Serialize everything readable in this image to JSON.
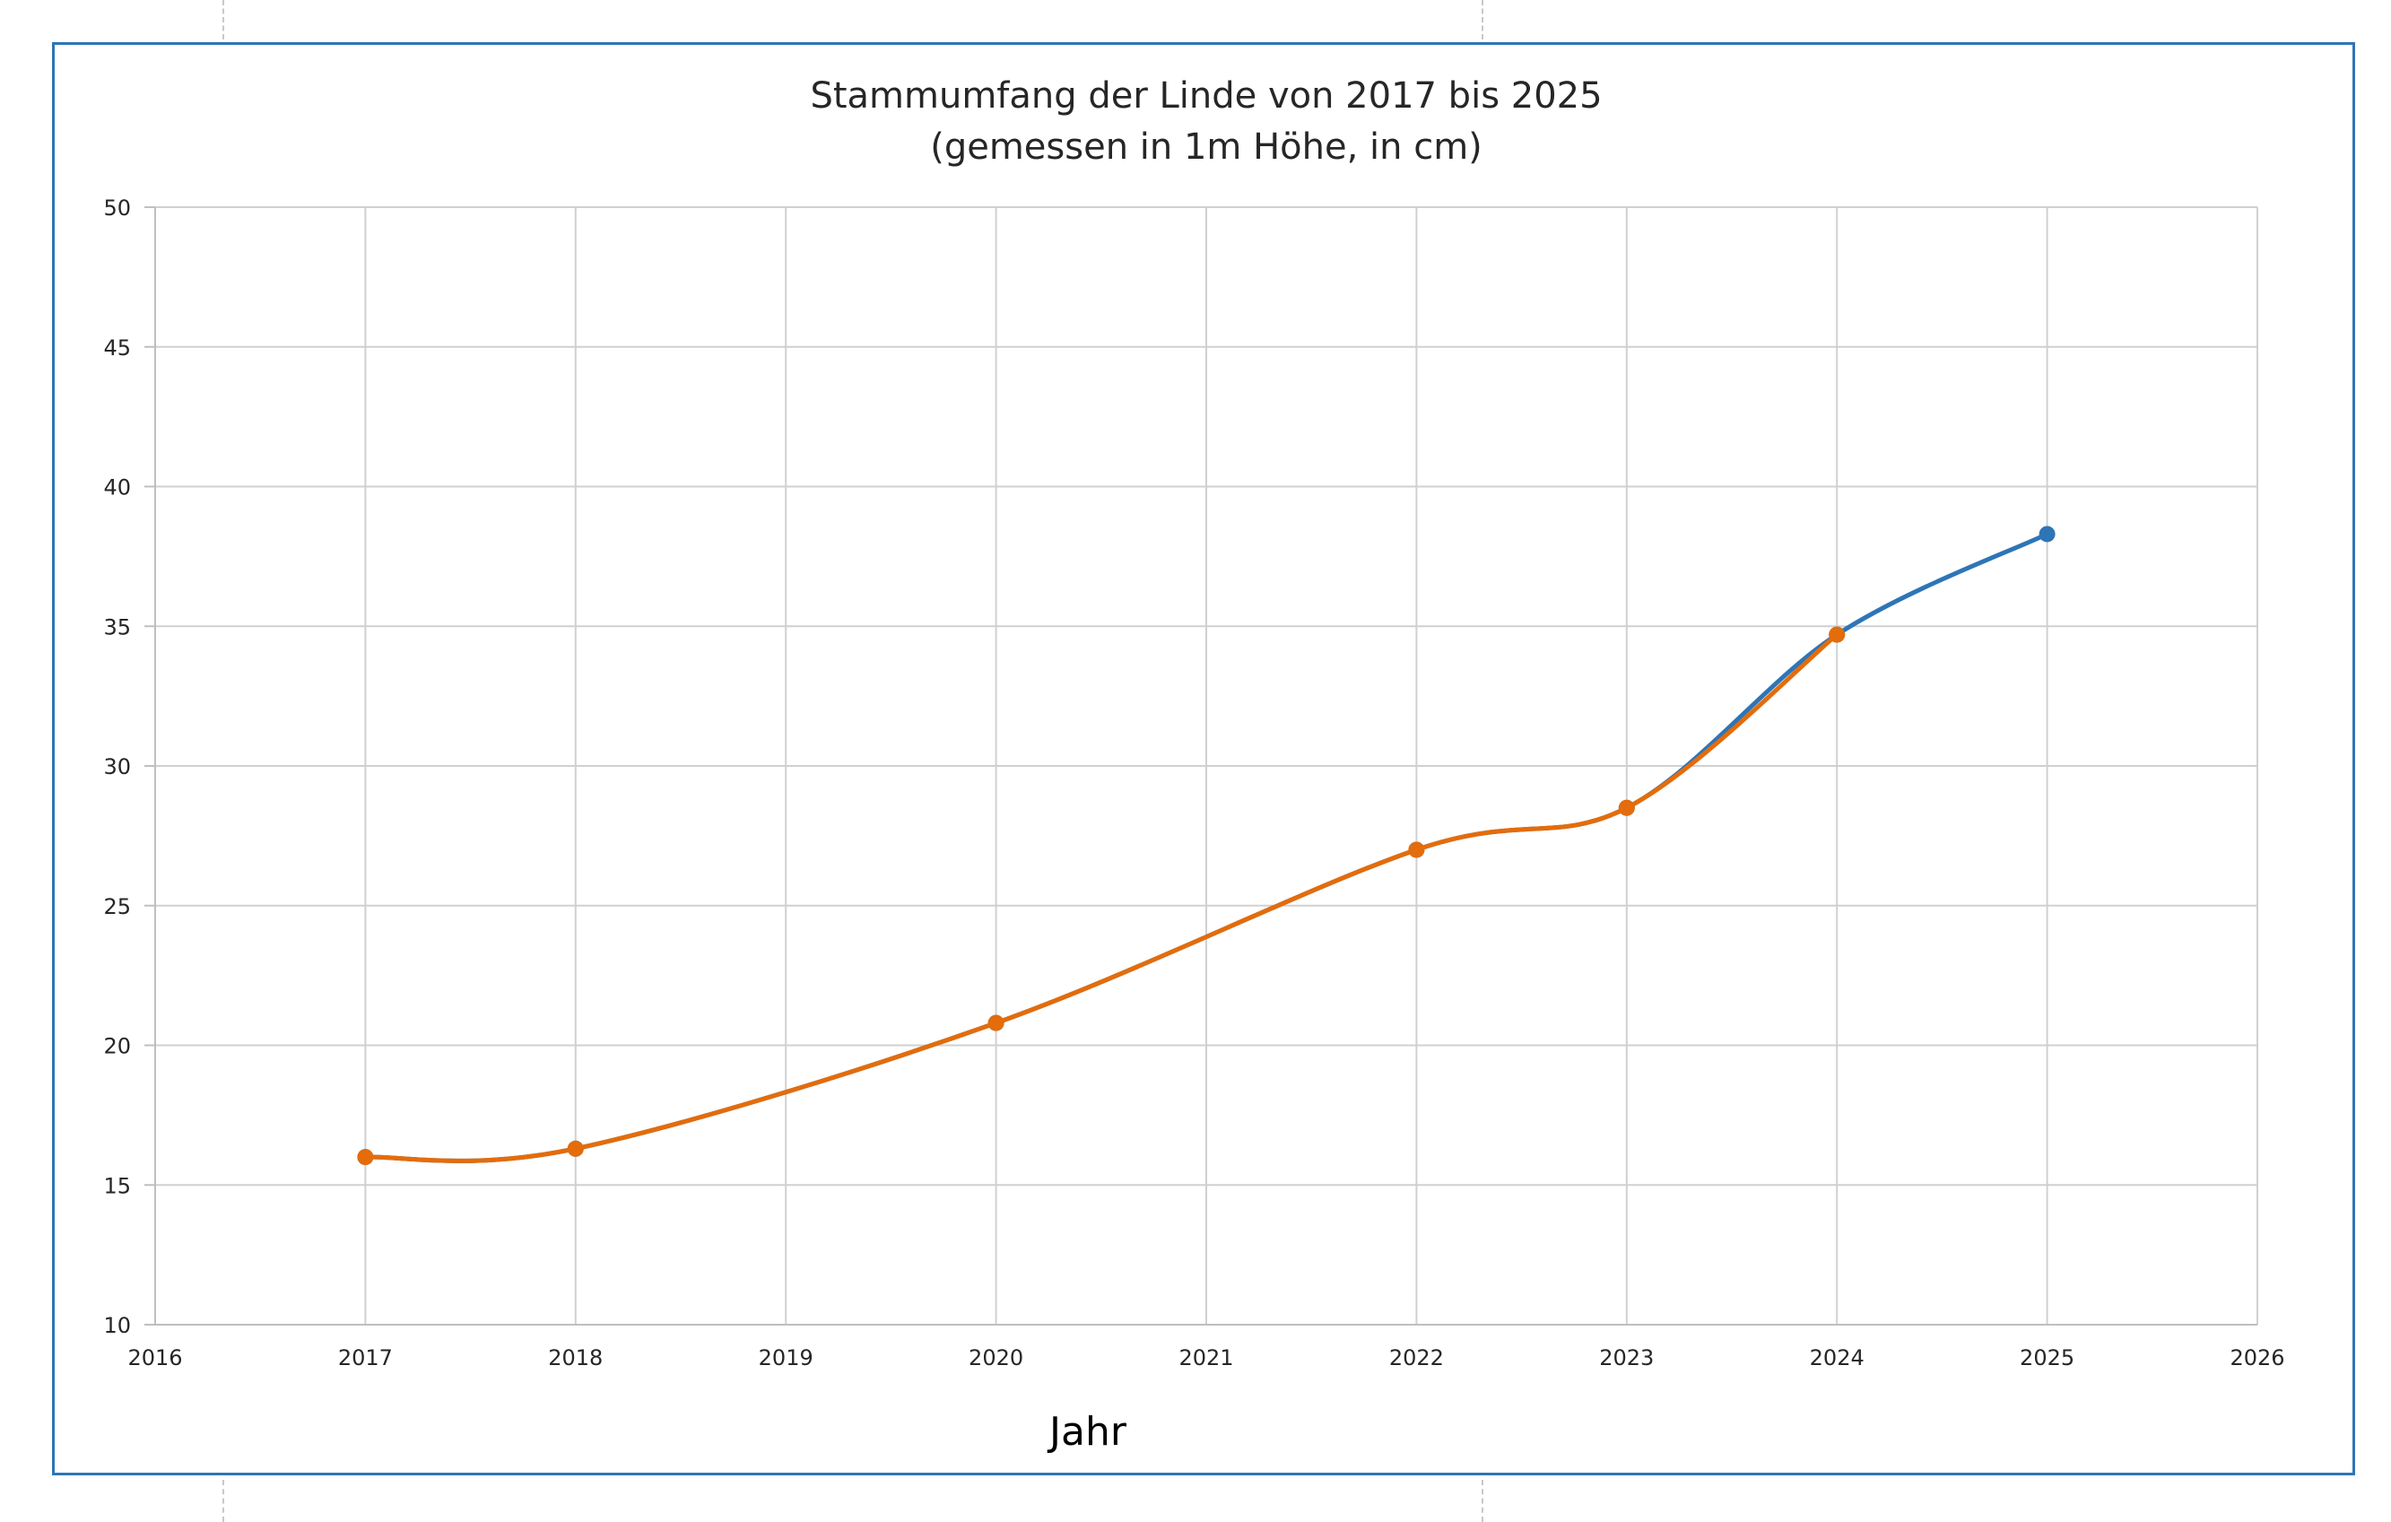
{
  "chart_data": {
    "type": "line",
    "title": "Stammumfang der Linde von 2017 bis 2025",
    "subtitle": "(gemessen in 1m Höhe, in cm)",
    "xlabel": "Jahr",
    "ylabel": "",
    "xlim": [
      2016,
      2026
    ],
    "ylim": [
      10,
      50
    ],
    "x_ticks": [
      2016,
      2017,
      2018,
      2019,
      2020,
      2021,
      2022,
      2023,
      2024,
      2025,
      2026
    ],
    "y_ticks": [
      10,
      15,
      20,
      25,
      30,
      35,
      40,
      45,
      50
    ],
    "grid": true,
    "smooth": true,
    "legend": "none",
    "series": [
      {
        "color": "#2e75b6",
        "x": [
          2017,
          2018,
          2020,
          2022,
          2023,
          2024,
          2025
        ],
        "values": [
          16.0,
          16.3,
          20.8,
          27.0,
          28.5,
          34.7,
          38.3
        ]
      },
      {
        "color": "#e46c0a",
        "x": [
          2017,
          2018,
          2020,
          2022,
          2023,
          2024
        ],
        "values": [
          16.0,
          16.3,
          20.8,
          27.0,
          28.5,
          34.7
        ]
      }
    ]
  }
}
